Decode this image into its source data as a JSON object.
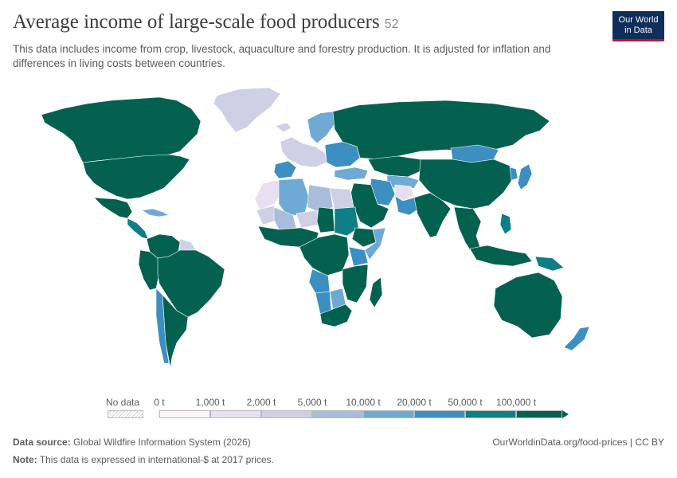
{
  "header": {
    "title": "Average income of large-scale food producers",
    "title_badge": "52",
    "subtitle": "This data includes income from crop, livestock, aquaculture and forestry production. It is adjusted for inflation and differences in living costs between countries."
  },
  "logo": {
    "line1": "Our World",
    "line2": "in Data",
    "bg_color": "#0f2e5b",
    "accent_color": "#c8102e"
  },
  "colors": {
    "no_data": "#e0e0e0",
    "bins": [
      "#fbf5fa",
      "#e8e0f0",
      "#cfd0e5",
      "#a8bcdb",
      "#6eaad4",
      "#3d8fc2",
      "#0f7e86",
      "#04614f"
    ]
  },
  "legend": {
    "no_data_label": "No data",
    "tick_labels": [
      "0 t",
      "1,000 t",
      "2,000 t",
      "5,000 t",
      "10,000 t",
      "20,000 t",
      "50,000 t",
      "100,000 t"
    ]
  },
  "footer": {
    "source_label": "Data source:",
    "source_text": "Global Wildfire Information System (2026)",
    "note_label": "Note:",
    "note_text": "This data is expressed in international-$ at 2017 prices.",
    "attribution": "OurWorldinData.org/food-prices | CC BY"
  },
  "regions": [
    {
      "name": "Greenland",
      "bin": 2
    },
    {
      "name": "Canada",
      "bin": 7
    },
    {
      "name": "United States",
      "bin": 7
    },
    {
      "name": "Mexico",
      "bin": 7
    },
    {
      "name": "Central America",
      "bin": 6
    },
    {
      "name": "Caribbean",
      "bin": 4
    },
    {
      "name": "Brazil",
      "bin": 7
    },
    {
      "name": "Peru / Ecuador",
      "bin": 7
    },
    {
      "name": "Chile",
      "bin": 5
    },
    {
      "name": "Argentina",
      "bin": 7
    },
    {
      "name": "Venezuela / Colombia",
      "bin": 7
    },
    {
      "name": "Guyanas",
      "bin": 2
    },
    {
      "name": "Iceland",
      "bin": 2
    },
    {
      "name": "Scandinavia",
      "bin": 4
    },
    {
      "name": "Western Europe",
      "bin": 2
    },
    {
      "name": "Iberia",
      "bin": 5
    },
    {
      "name": "Eastern Europe",
      "bin": 5
    },
    {
      "name": "Russia",
      "bin": 7
    },
    {
      "name": "Kazakhstan",
      "bin": 7
    },
    {
      "name": "Central Asia",
      "bin": 4
    },
    {
      "name": "Turkey",
      "bin": 4
    },
    {
      "name": "Iran",
      "bin": 5
    },
    {
      "name": "Afghanistan",
      "bin": 1
    },
    {
      "name": "Pakistan",
      "bin": 5
    },
    {
      "name": "Arabian Peninsula",
      "bin": 7
    },
    {
      "name": "Mongolia",
      "bin": 5
    },
    {
      "name": "China",
      "bin": 7
    },
    {
      "name": "India",
      "bin": 7
    },
    {
      "name": "Southeast Asia",
      "bin": 7
    },
    {
      "name": "Japan",
      "bin": 5
    },
    {
      "name": "Korea",
      "bin": 5
    },
    {
      "name": "Indonesia",
      "bin": 7
    },
    {
      "name": "Philippines",
      "bin": 6
    },
    {
      "name": "Papua New Guinea",
      "bin": 6
    },
    {
      "name": "Australia",
      "bin": 7
    },
    {
      "name": "New Zealand",
      "bin": 5
    },
    {
      "name": "Morocco / Western Sahara",
      "bin": 1
    },
    {
      "name": "Algeria",
      "bin": 4
    },
    {
      "name": "Libya",
      "bin": 3
    },
    {
      "name": "Egypt",
      "bin": 2
    },
    {
      "name": "Mauritania",
      "bin": 2
    },
    {
      "name": "Mali",
      "bin": 3
    },
    {
      "name": "Niger",
      "bin": 2
    },
    {
      "name": "Chad",
      "bin": 7
    },
    {
      "name": "Sudan",
      "bin": 6
    },
    {
      "name": "West Africa",
      "bin": 7
    },
    {
      "name": "Central Africa",
      "bin": 7
    },
    {
      "name": "Ethiopia",
      "bin": 7
    },
    {
      "name": "Somalia",
      "bin": 4
    },
    {
      "name": "Kenya",
      "bin": 5
    },
    {
      "name": "East Africa",
      "bin": 7
    },
    {
      "name": "Angola",
      "bin": 5
    },
    {
      "name": "Namibia",
      "bin": 5
    },
    {
      "name": "Botswana",
      "bin": 4
    },
    {
      "name": "South Africa",
      "bin": 7
    },
    {
      "name": "Madagascar",
      "bin": 7
    }
  ]
}
